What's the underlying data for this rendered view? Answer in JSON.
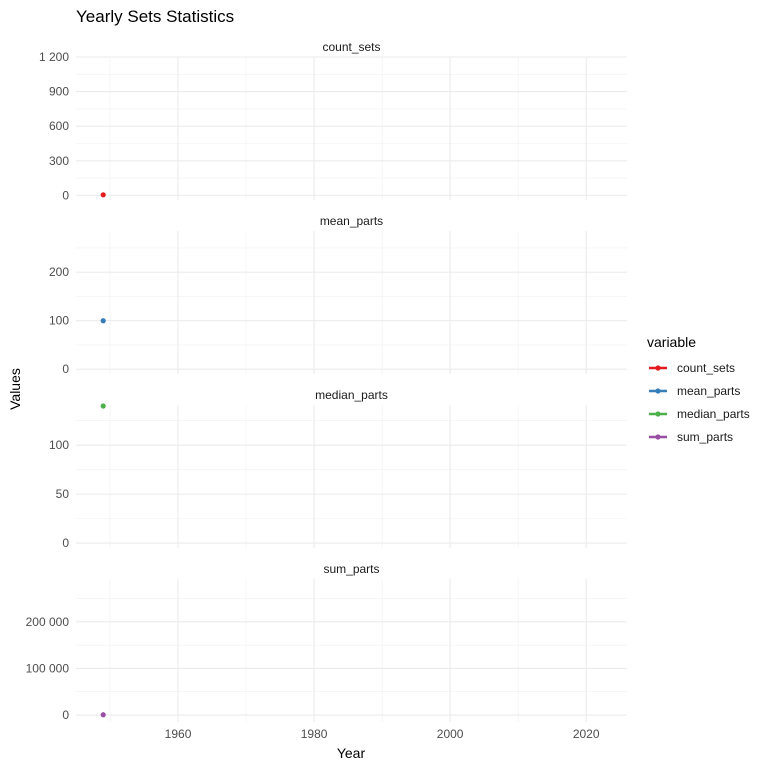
{
  "chart_data": {
    "type": "line",
    "title": "Yearly Sets Statistics",
    "xlabel": "Year",
    "ylabel": "Values",
    "x_ticks": [
      1960,
      1980,
      2000,
      2020
    ],
    "xlim": [
      1945,
      2026
    ],
    "legend": {
      "title": "variable",
      "placement": "right",
      "entries": [
        "count_sets",
        "mean_parts",
        "median_parts",
        "sum_parts"
      ]
    },
    "facets": [
      {
        "name": "count_sets",
        "color": "#E41A1C",
        "ylim": [
          -40,
          1200
        ],
        "y_ticks": [
          0,
          300,
          600,
          900,
          1200
        ],
        "y_tick_labels": [
          "0",
          "300",
          "600",
          "900",
          "1 200"
        ],
        "points": [
          {
            "x": 1949,
            "y": 5
          }
        ]
      },
      {
        "name": "mean_parts",
        "color": "#377EB8",
        "ylim": [
          -10,
          285
        ],
        "y_ticks": [
          0,
          100,
          200
        ],
        "y_tick_labels": [
          "0",
          "100",
          "200"
        ],
        "points": [
          {
            "x": 1949,
            "y": 99.9
          }
        ]
      },
      {
        "name": "median_parts",
        "color": "#4DAF4A",
        "ylim": [
          -5,
          141
        ],
        "y_ticks": [
          0,
          50,
          100
        ],
        "y_tick_labels": [
          "0",
          "50",
          "100"
        ],
        "points": [
          {
            "x": 1949,
            "y": 140
          }
        ]
      },
      {
        "name": "sum_parts",
        "color": "#984EA3",
        "ylim": [
          -15000,
          292000
        ],
        "y_ticks": [
          0,
          100000,
          200000
        ],
        "y_tick_labels": [
          "0",
          "100 000",
          "200 000"
        ],
        "points": [
          {
            "x": 1949,
            "y": 500
          }
        ]
      }
    ]
  }
}
